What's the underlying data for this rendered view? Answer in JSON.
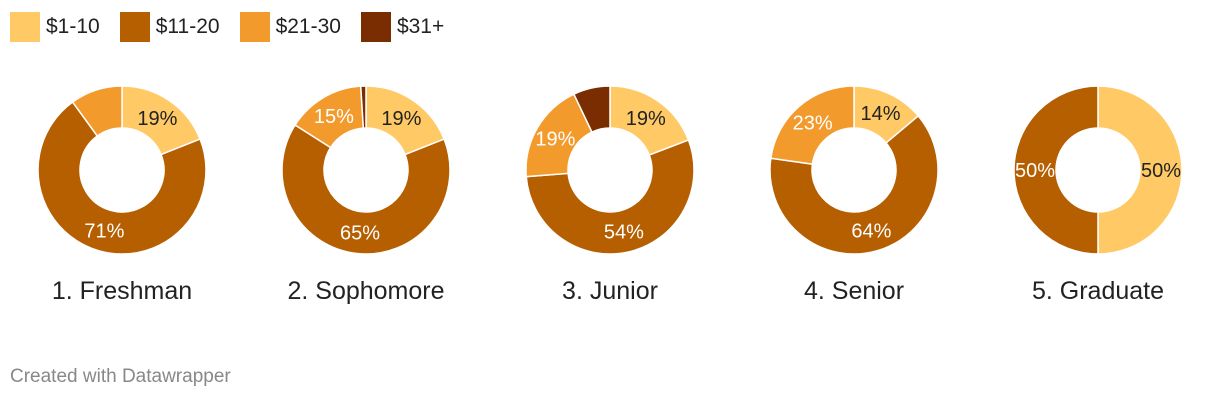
{
  "legend": {
    "items": [
      {
        "label": "$1-10",
        "color": "#ffc965"
      },
      {
        "label": "$11-20",
        "color": "#b55f00"
      },
      {
        "label": "$21-30",
        "color": "#f39a2c"
      },
      {
        "label": "$31+",
        "color": "#7a2d00"
      }
    ]
  },
  "chart_data": {
    "type": "pie",
    "variant": "donut",
    "categories": [
      "$1-10",
      "$11-20",
      "$21-30",
      "$31+"
    ],
    "colors": [
      "#ffc965",
      "#b55f00",
      "#f39a2c",
      "#7a2d00"
    ],
    "charts": [
      {
        "title": "1. Freshman",
        "values": [
          19,
          71,
          10,
          0
        ],
        "labels": [
          "19%",
          "71%",
          "",
          ""
        ]
      },
      {
        "title": "2. Sophomore",
        "values": [
          19,
          65,
          15,
          1
        ],
        "labels": [
          "19%",
          "65%",
          "15%",
          ""
        ]
      },
      {
        "title": "3. Junior",
        "values": [
          19,
          54,
          19,
          7
        ],
        "labels": [
          "19%",
          "54%",
          "19%",
          ""
        ]
      },
      {
        "title": "4. Senior",
        "values": [
          14,
          64,
          23,
          0
        ],
        "labels": [
          "14%",
          "64%",
          "23%",
          ""
        ]
      },
      {
        "title": "5. Graduate",
        "values": [
          50,
          50,
          0,
          0
        ],
        "labels": [
          "50%",
          "50%",
          "",
          ""
        ]
      }
    ]
  },
  "footer": {
    "credit": "Created with Datawrapper"
  }
}
